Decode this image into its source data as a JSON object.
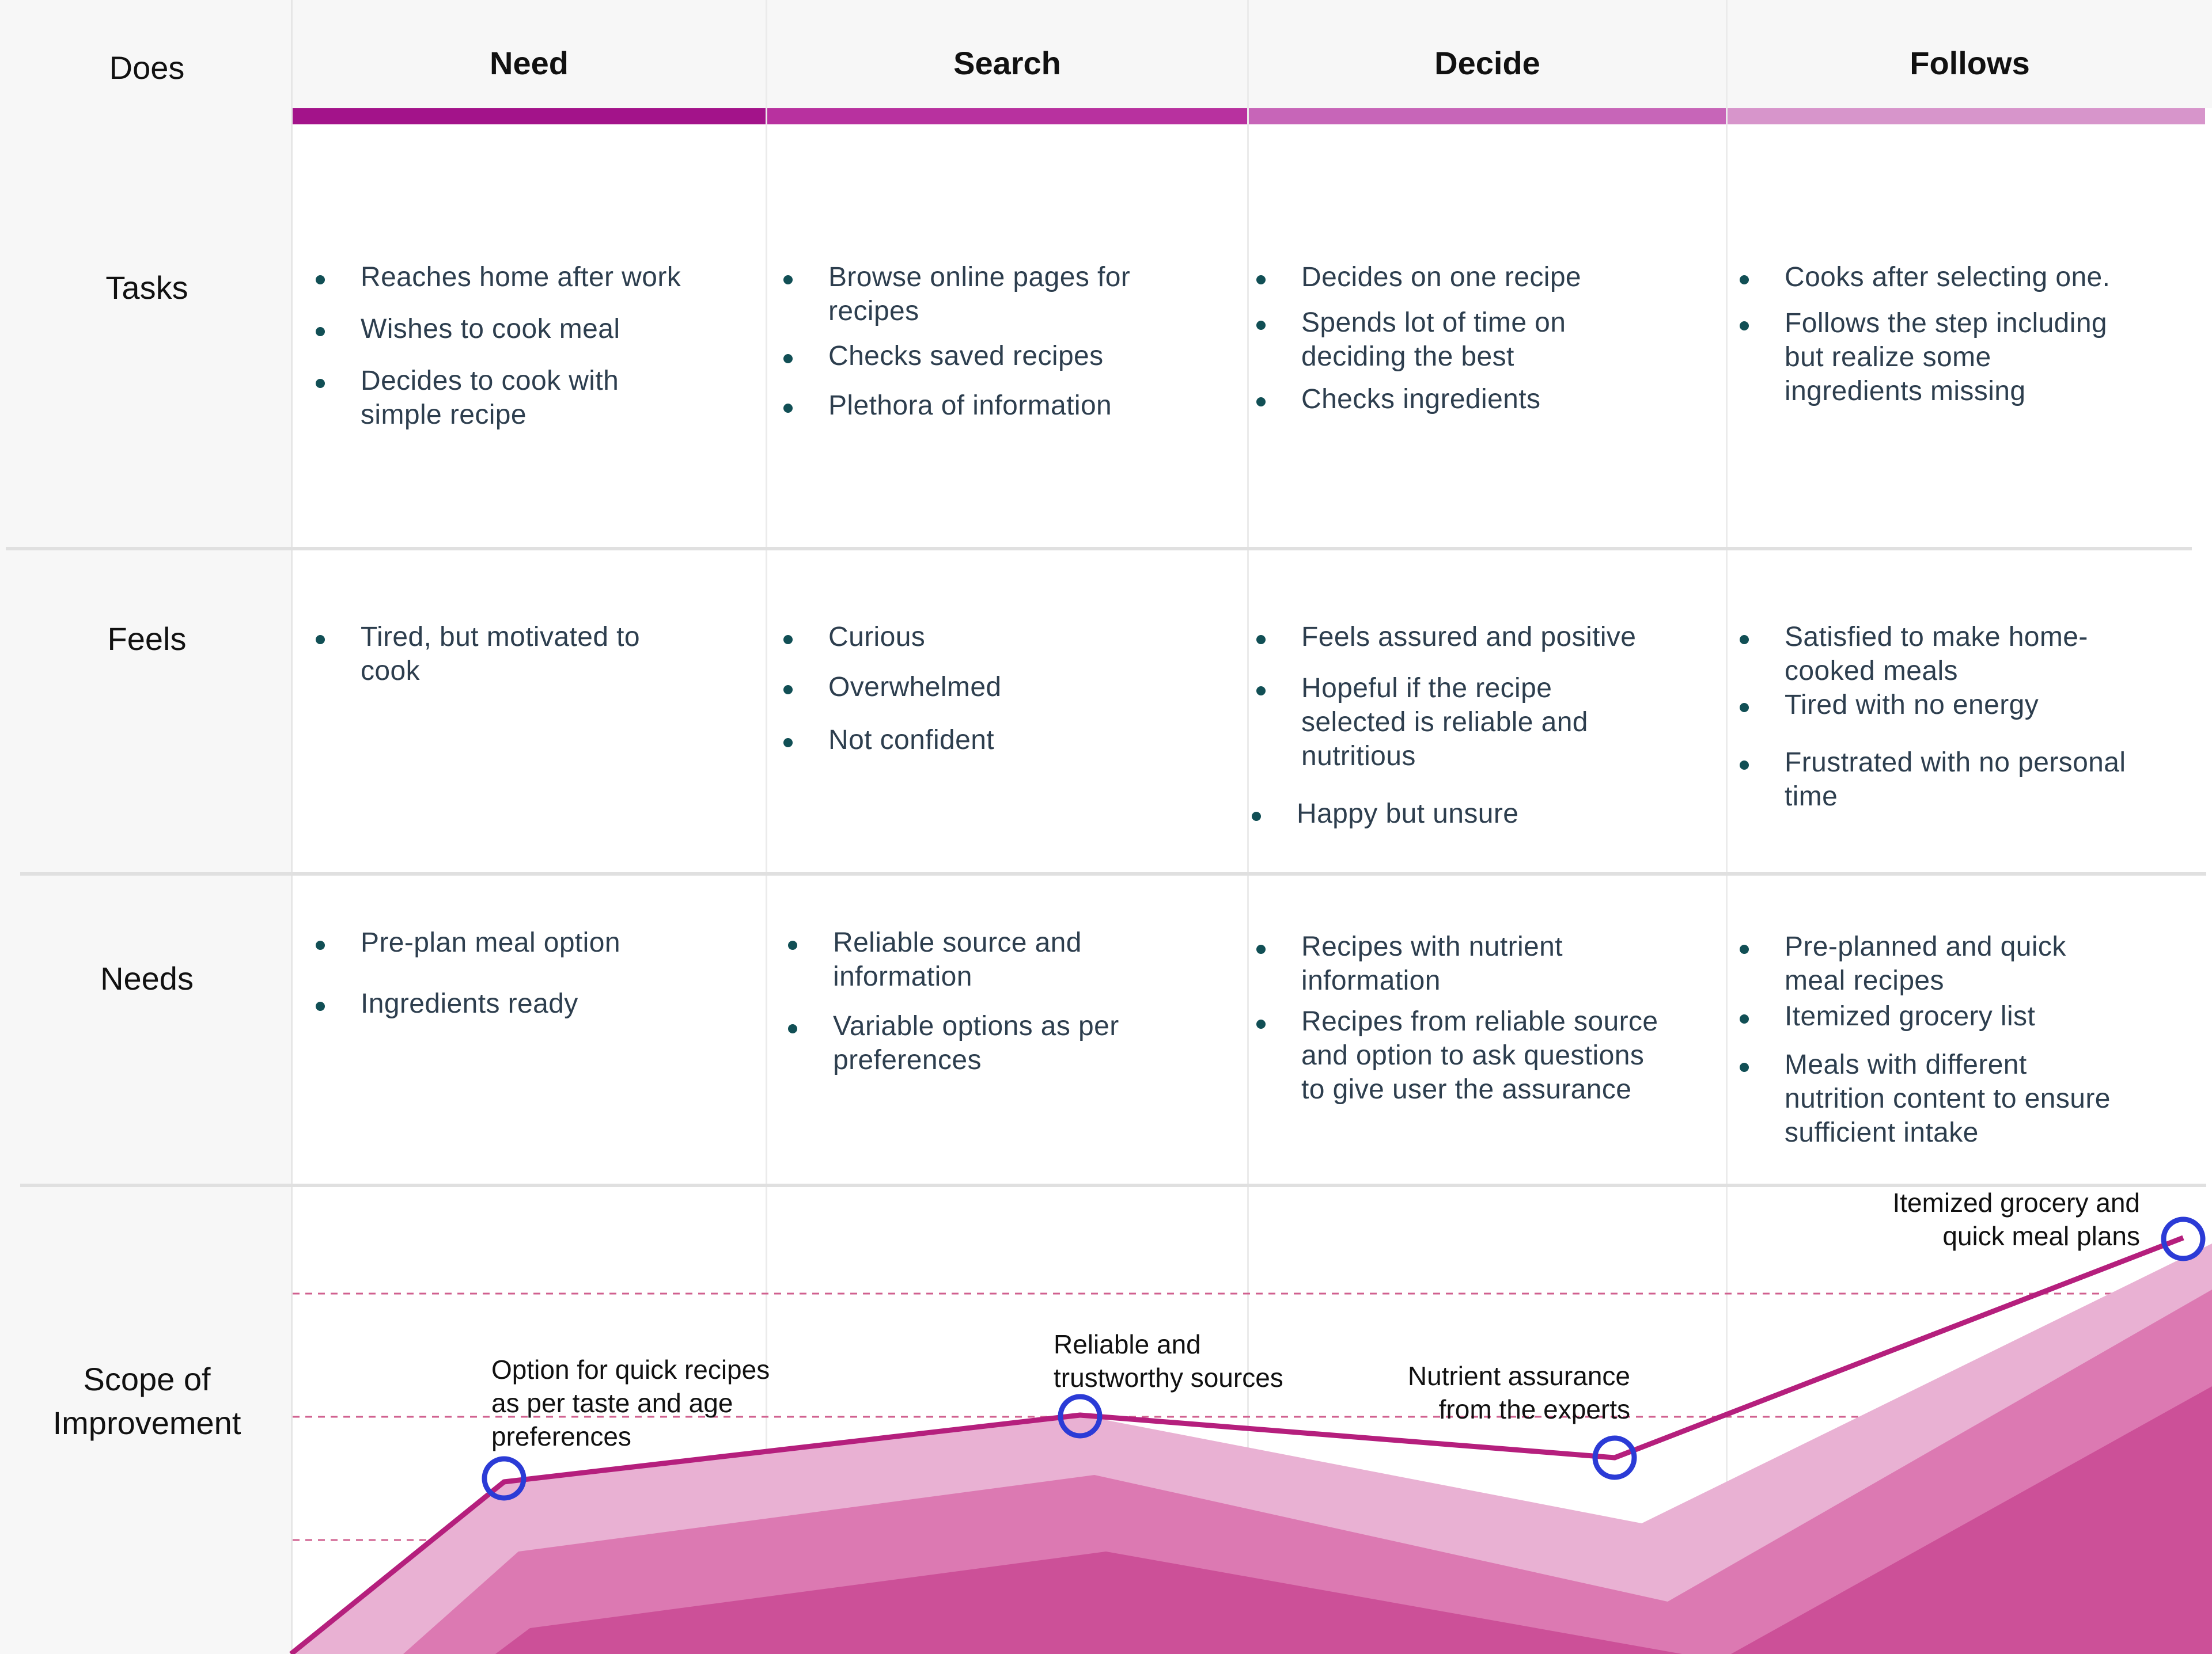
{
  "colors": {
    "line": "#b51f7d",
    "band_light": "#e9b1d3",
    "band_mid": "#dc79b2",
    "band_dark": "#cc5098",
    "marker": "#2b3bd6",
    "dash": "#d0608f",
    "bar_need": "#a3138a",
    "bar_search": "#b8319f",
    "bar_decide": "#c765b8",
    "bar_follows": "#d795cb",
    "bullet": "#114f55"
  },
  "header": {
    "corner_label": "Does",
    "columns": [
      {
        "label": "Need"
      },
      {
        "label": "Search"
      },
      {
        "label": "Decide"
      },
      {
        "label": "Follows"
      }
    ]
  },
  "rows": [
    {
      "label": "Tasks",
      "cells": [
        [
          "Reaches home after work",
          "Wishes to cook meal",
          "Decides to cook  with\nsimple recipe"
        ],
        [
          "Browse online pages for\nrecipes",
          "Checks saved recipes",
          "Plethora of information"
        ],
        [
          "Decides on one recipe",
          "Spends lot of time on\ndeciding the best",
          "Checks ingredients"
        ],
        [
          "Cooks after selecting one.",
          "Follows the step including\nbut realize some\ningredients missing"
        ]
      ]
    },
    {
      "label": "Feels",
      "cells": [
        [
          "Tired, but motivated to\ncook"
        ],
        [
          "Curious",
          "Overwhelmed",
          "Not confident"
        ],
        [
          "Feels assured and positive",
          "Hopeful if the recipe\nselected is reliable and\nnutritious",
          "Happy but unsure"
        ],
        [
          "Satisfied to make home-\ncooked meals",
          "Tired with no energy",
          "Frustrated with no personal\ntime"
        ]
      ]
    },
    {
      "label": "Needs",
      "cells": [
        [
          "Pre-plan meal option",
          "Ingredients ready"
        ],
        [
          "Reliable source and\ninformation",
          "Variable options as per\npreferences"
        ],
        [
          "Recipes with nutrient\ninformation",
          "Recipes from reliable source\nand option to ask questions\nto give user the assurance"
        ],
        [
          "Pre-planned and quick\nmeal recipes",
          "Itemized grocery list",
          "Meals with different\nnutrition content to ensure\nsufficient intake"
        ]
      ]
    },
    {
      "label": "Scope of\nImprovement"
    }
  ],
  "chart_data": {
    "type": "line",
    "stages": [
      "Need",
      "Search",
      "Decide",
      "Follows"
    ],
    "annotations": [
      "Option for quick recipes\nas per taste and age\npreferences",
      "Reliable and\ntrustworthy sources",
      "Nutrient  assurance\nfrom the experts",
      "Itemized grocery and\nquick meal plans"
    ],
    "grid": "dashed horizontal lines"
  }
}
